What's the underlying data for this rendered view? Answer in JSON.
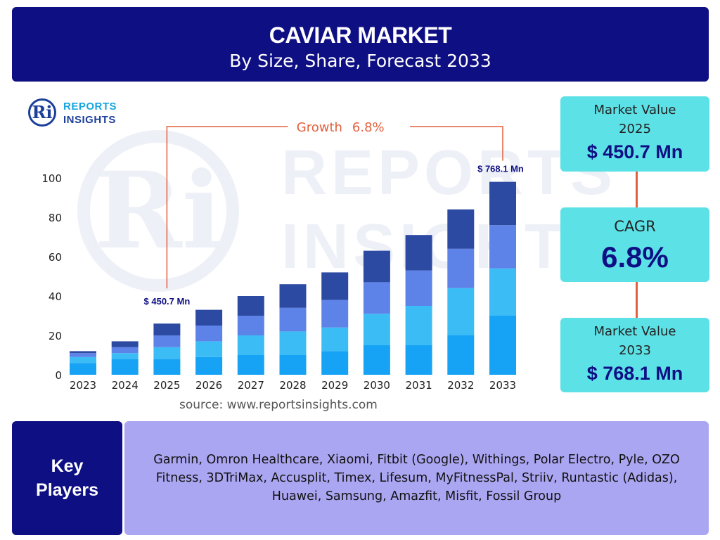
{
  "header": {
    "title": "CAVIAR MARKET",
    "subtitle": "By Size, Share, Forecast 2033"
  },
  "logo": {
    "mark": "Ri",
    "line1": "REPORTS",
    "line2": "INSIGHTS"
  },
  "source": "source: www.reportsinsights.com",
  "side_boxes": {
    "box1": {
      "label_line1": "Market Value",
      "label_line2": "2025",
      "value": "$ 450.7 Mn"
    },
    "box2": {
      "label": "CAGR",
      "value": "6.8%"
    },
    "box3": {
      "label_line1": "Market Value",
      "label_line2": "2033",
      "value": "$ 768.1 Mn"
    }
  },
  "key_players": {
    "label_line1": "Key",
    "label_line2": "Players",
    "text": "Garmin, Omron Healthcare, Xiaomi, Fitbit (Google), Withings, Polar Electro, Pyle, OZO Fitness, 3DTriMax, Accusplit, Timex, Lifesum, MyFitnessPal, Striiv, Runtastic (Adidas), Huawei, Samsung, Amazfit, Misfit, Fossil Group"
  },
  "colors": {
    "header": "#0f0f84",
    "accent": "#5ce1e6",
    "players_bg": "#aba6f2",
    "growth_line": "#e2603c",
    "value_label": "#0f0f84"
  },
  "chart_data": {
    "type": "bar",
    "stacked": true,
    "categories": [
      "2023",
      "2024",
      "2025",
      "2026",
      "2027",
      "2028",
      "2029",
      "2030",
      "2031",
      "2032",
      "2033"
    ],
    "series": [
      {
        "color": "#16a3f5",
        "values": [
          6,
          8,
          8,
          9,
          10,
          10,
          12,
          15,
          15,
          20,
          30
        ]
      },
      {
        "color": "#3cbcf5",
        "values": [
          3,
          3,
          6,
          8,
          10,
          12,
          12,
          16,
          20,
          24,
          24
        ]
      },
      {
        "color": "#5e83e8",
        "values": [
          2,
          3,
          6,
          8,
          10,
          12,
          14,
          16,
          18,
          20,
          22
        ]
      },
      {
        "color": "#2d4aa3",
        "values": [
          1,
          3,
          6,
          8,
          10,
          12,
          14,
          16,
          18,
          20,
          22
        ]
      }
    ],
    "ylim": [
      0,
      100
    ],
    "yticks": [
      0,
      20,
      40,
      60,
      80,
      100
    ],
    "grid": false,
    "annotations": {
      "start_label": "$ 450.7 Mn",
      "start_category": "2025",
      "end_label": "$ 768.1 Mn",
      "end_category": "2033",
      "growth_text": "Growth",
      "growth_value": "6.8%"
    }
  }
}
